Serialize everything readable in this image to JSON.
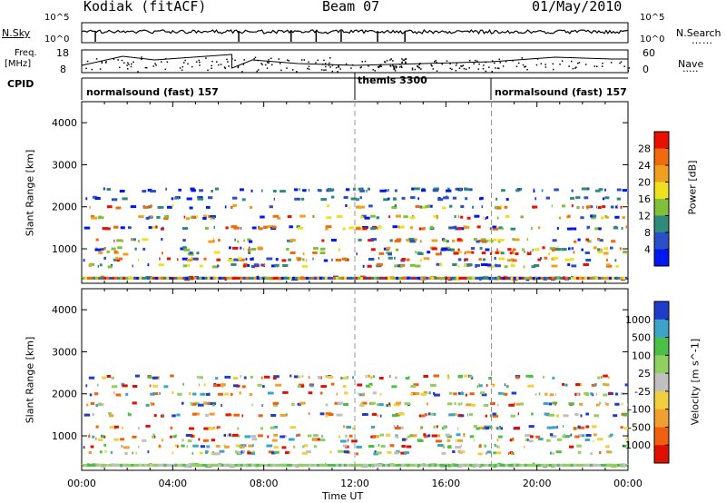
{
  "header": {
    "station": "Kodiak (fitACF)",
    "beam": "Beam 07",
    "date": "01/May/2010"
  },
  "sky_panel": {
    "left_label": "N.Sky",
    "right_label": "N.Search",
    "left_ticks": [
      "10^5",
      "10^0"
    ],
    "right_ticks": [
      "10^5",
      "10^0"
    ]
  },
  "freq_panel": {
    "left_label_1": "Freq.",
    "left_label_2": "[MHz]",
    "left_ticks": [
      "18",
      "8"
    ],
    "right_label": "Nave",
    "right_ticks": [
      "60",
      "0"
    ]
  },
  "cpid": {
    "label": "CPID",
    "segments": [
      {
        "name": "normalsound (fast) 157",
        "start_hour": 0,
        "end_hour": 12
      },
      {
        "name": "themis 3300",
        "start_hour": 12,
        "end_hour": 18
      },
      {
        "name": "normalsound (fast) 157",
        "start_hour": 18,
        "end_hour": 24
      }
    ]
  },
  "chart_data": [
    {
      "type": "heatmap",
      "title": "",
      "parameter": "Power [dB]",
      "xlabel": "",
      "ylabel": "Slant Range [km]",
      "x_unit": "hours UT",
      "xlim": [
        0,
        24
      ],
      "ylim": [
        180,
        4500
      ],
      "yticks": [
        1000,
        2000,
        3000,
        4000
      ],
      "colorbar": {
        "label": "Power [dB]",
        "ticks": [
          "4",
          "8",
          "12",
          "16",
          "20",
          "24",
          "28"
        ],
        "colors": [
          "#0018f0",
          "#2a4fc6",
          "#2f8a7c",
          "#7fbf3a",
          "#f0e020",
          "#f0a020",
          "#f06a10",
          "#e81000"
        ]
      },
      "echo_bands_km": [
        300,
        600,
        750,
        900,
        1000,
        1200,
        1500,
        1750,
        2000,
        2200,
        2400
      ],
      "grid": false
    },
    {
      "type": "heatmap",
      "title": "",
      "parameter": "Velocity [m s^-1]",
      "xlabel": "Time UT",
      "ylabel": "Slant Range [km]",
      "x_unit": "hours UT",
      "xlim": [
        0,
        24
      ],
      "ylim": [
        180,
        4500
      ],
      "yticks": [
        1000,
        2000,
        3000,
        4000
      ],
      "xticks": [
        "00:00",
        "04:00",
        "08:00",
        "12:00",
        "16:00",
        "20:00",
        "00:00"
      ],
      "colorbar": {
        "label": "Velocity [m s^-1]",
        "ticks": [
          "1000",
          "500",
          "100",
          "25",
          "-25",
          "-100",
          "-500",
          "-1000"
        ],
        "colors": [
          "#203cc8",
          "#3ea3c8",
          "#4cbf4a",
          "#90d060",
          "#c0c0c0",
          "#f0d040",
          "#f0a030",
          "#f06010",
          "#e01000"
        ]
      },
      "echo_bands_km": [
        300,
        600,
        750,
        900,
        1000,
        1200,
        1500,
        1750,
        2000,
        2200,
        2400
      ],
      "grid": false
    }
  ]
}
